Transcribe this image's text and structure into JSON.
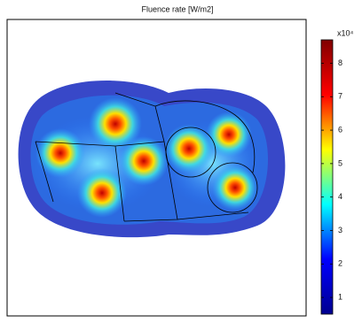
{
  "chart_data": {
    "type": "heatmap",
    "title": "Fluence rate [W/m2]",
    "colorbar": {
      "label": "x10⁴",
      "colormap": "jet",
      "clim": [
        0.5,
        8.7
      ],
      "ticks": [
        1,
        2,
        3,
        4,
        5,
        6,
        7,
        8
      ]
    }
  }
}
